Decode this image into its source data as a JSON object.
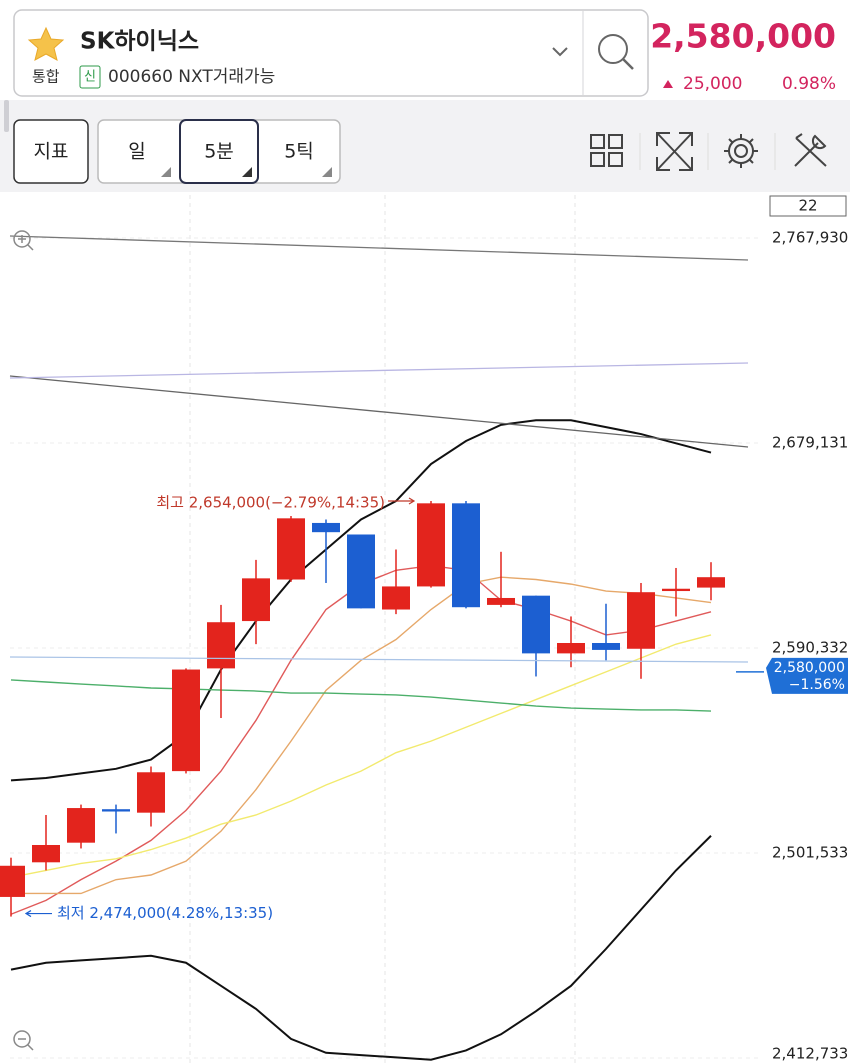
{
  "header": {
    "name": "SK하이닉스",
    "market": "통합",
    "badge": "신",
    "code": "000660 NXT거래가능",
    "price": "2,580,000",
    "change": "25,000",
    "change_rate": "0.98%"
  },
  "toolbar": {
    "buttons": [
      "지표",
      "일",
      "5분",
      "5틱"
    ]
  },
  "chart_data": {
    "type": "candlestick",
    "period_label": "22",
    "up_color": "#e3241d",
    "down_color": "#1c5fd1",
    "open": [
      2482500,
      2497500,
      2506000,
      2520500,
      2519000,
      2537000,
      2581500,
      2602000,
      2620000,
      2644500,
      2639500,
      2607000,
      2617000,
      2653000,
      2609000,
      2613000,
      2588000,
      2592500,
      2590000,
      2615000,
      2616500
    ],
    "high": [
      2499500,
      2518000,
      2522500,
      2522500,
      2539000,
      2581500,
      2609000,
      2628500,
      2647500,
      2646000,
      2639500,
      2633000,
      2654000,
      2654000,
      2632000,
      2613000,
      2604000,
      2609500,
      2618500,
      2625000,
      2627500
    ],
    "low": [
      2474000,
      2494000,
      2503500,
      2510000,
      2513000,
      2536000,
      2560000,
      2592000,
      2619000,
      2618500,
      2607500,
      2605000,
      2616500,
      2607500,
      2608000,
      2578000,
      2582000,
      2585000,
      2577000,
      2604000,
      2611000
    ],
    "close": [
      2496000,
      2505000,
      2521000,
      2519500,
      2536500,
      2581000,
      2601500,
      2620500,
      2646500,
      2640500,
      2607500,
      2617000,
      2653000,
      2608000,
      2612000,
      2588000,
      2592500,
      2589500,
      2614500,
      2616000,
      2621000
    ],
    "overlays": [
      {
        "color": "#111111",
        "values": [
          2533000,
          2534000,
          2536000,
          2538000,
          2542000,
          2553000,
          2581000,
          2602000,
          2620000,
          2633000,
          2646000,
          2654000,
          2670000,
          2680000,
          2687000,
          2689000,
          2689000,
          2686000,
          2683000,
          2679000,
          2675000
        ]
      },
      {
        "color": "#111111",
        "values": [
          2451000,
          2454000,
          2455000,
          2456000,
          2457000,
          2454000,
          2444000,
          2434000,
          2421000,
          2415000,
          2414000,
          2413000,
          2412000,
          2416000,
          2423000,
          2433000,
          2444000,
          2460000,
          2477000,
          2494000,
          2509000
        ]
      },
      {
        "color": "#e05a5a",
        "values": [
          2475000,
          2481000,
          2490000,
          2498000,
          2507000,
          2520000,
          2537000,
          2559000,
          2585000,
          2607000,
          2618000,
          2624000,
          2626000,
          2624000,
          2611000,
          2607000,
          2602000,
          2596000,
          2598000,
          2602000,
          2606000
        ]
      },
      {
        "color": "#e6a86a",
        "values": [
          2484000,
          2484000,
          2484000,
          2490000,
          2492000,
          2498000,
          2511000,
          2529000,
          2550000,
          2572000,
          2585000,
          2594000,
          2607000,
          2618000,
          2621000,
          2620000,
          2618000,
          2615000,
          2614000,
          2612000,
          2610000
        ]
      },
      {
        "color": "#f2ea6e",
        "values": [
          2491000,
          2494000,
          2497000,
          2499000,
          2503000,
          2508000,
          2514000,
          2518000,
          2524000,
          2531000,
          2537000,
          2545000,
          2550000,
          2556000,
          2562000,
          2568000,
          2574000,
          2580000,
          2586000,
          2592000,
          2596000
        ]
      },
      {
        "color": "#4caf6a",
        "values": [
          2576500,
          2575600,
          2574700,
          2573900,
          2573000,
          2572600,
          2572100,
          2571700,
          2570800,
          2570800,
          2570400,
          2570000,
          2569100,
          2567800,
          2566500,
          2565200,
          2564300,
          2563900,
          2563500,
          2563500,
          2563000
        ]
      }
    ],
    "ylim": [
      2412733,
      2767930
    ],
    "yticks": [
      {
        "value": 2767930,
        "label": "2,767,930"
      },
      {
        "value": 2679131,
        "label": "2,679,131"
      },
      {
        "value": 2590332,
        "label": "2,590,332"
      },
      {
        "value": 2501533,
        "label": "2,501,533"
      },
      {
        "value": 2412733,
        "label": "2,412,733"
      }
    ],
    "grid": true,
    "price_tag": {
      "value": 2580000,
      "label": "2,580,000",
      "change": "−1.56%"
    },
    "high_annotation": "최고 2,654,000(−2.79%,14:35)",
    "low_annotation": "최저 2,474,000(4.28%,13:35)"
  }
}
